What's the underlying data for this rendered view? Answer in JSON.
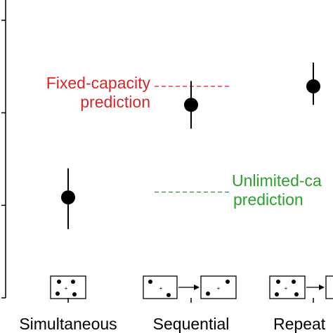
{
  "chart_data": {
    "type": "scatter",
    "categories": [
      "Simultaneous",
      "Sequential",
      "Repeat"
    ],
    "points": [
      {
        "category": "Simultaneous",
        "y": 0.58,
        "err_low": 0.46,
        "err_high": 0.69
      },
      {
        "category": "Sequential",
        "y": 0.93,
        "err_low": 0.84,
        "err_high": 1.02
      },
      {
        "category": "Repeat",
        "y": 1.0,
        "err_low": 0.93,
        "err_high": 1.09
      }
    ],
    "ylim": [
      0.2,
      1.3
    ],
    "y_ticks": [
      0.2,
      0.55,
      0.9,
      1.25
    ],
    "annotations": {
      "fixed": {
        "line1": "Fixed-capacity",
        "line2": "prediction",
        "value": 1.0,
        "color": "#d62728"
      },
      "unlimited": {
        "line1": "Unlimited-ca",
        "line2": "prediction",
        "value": 0.6,
        "color": "#2ca02c"
      }
    },
    "marker_color": "#000000"
  }
}
